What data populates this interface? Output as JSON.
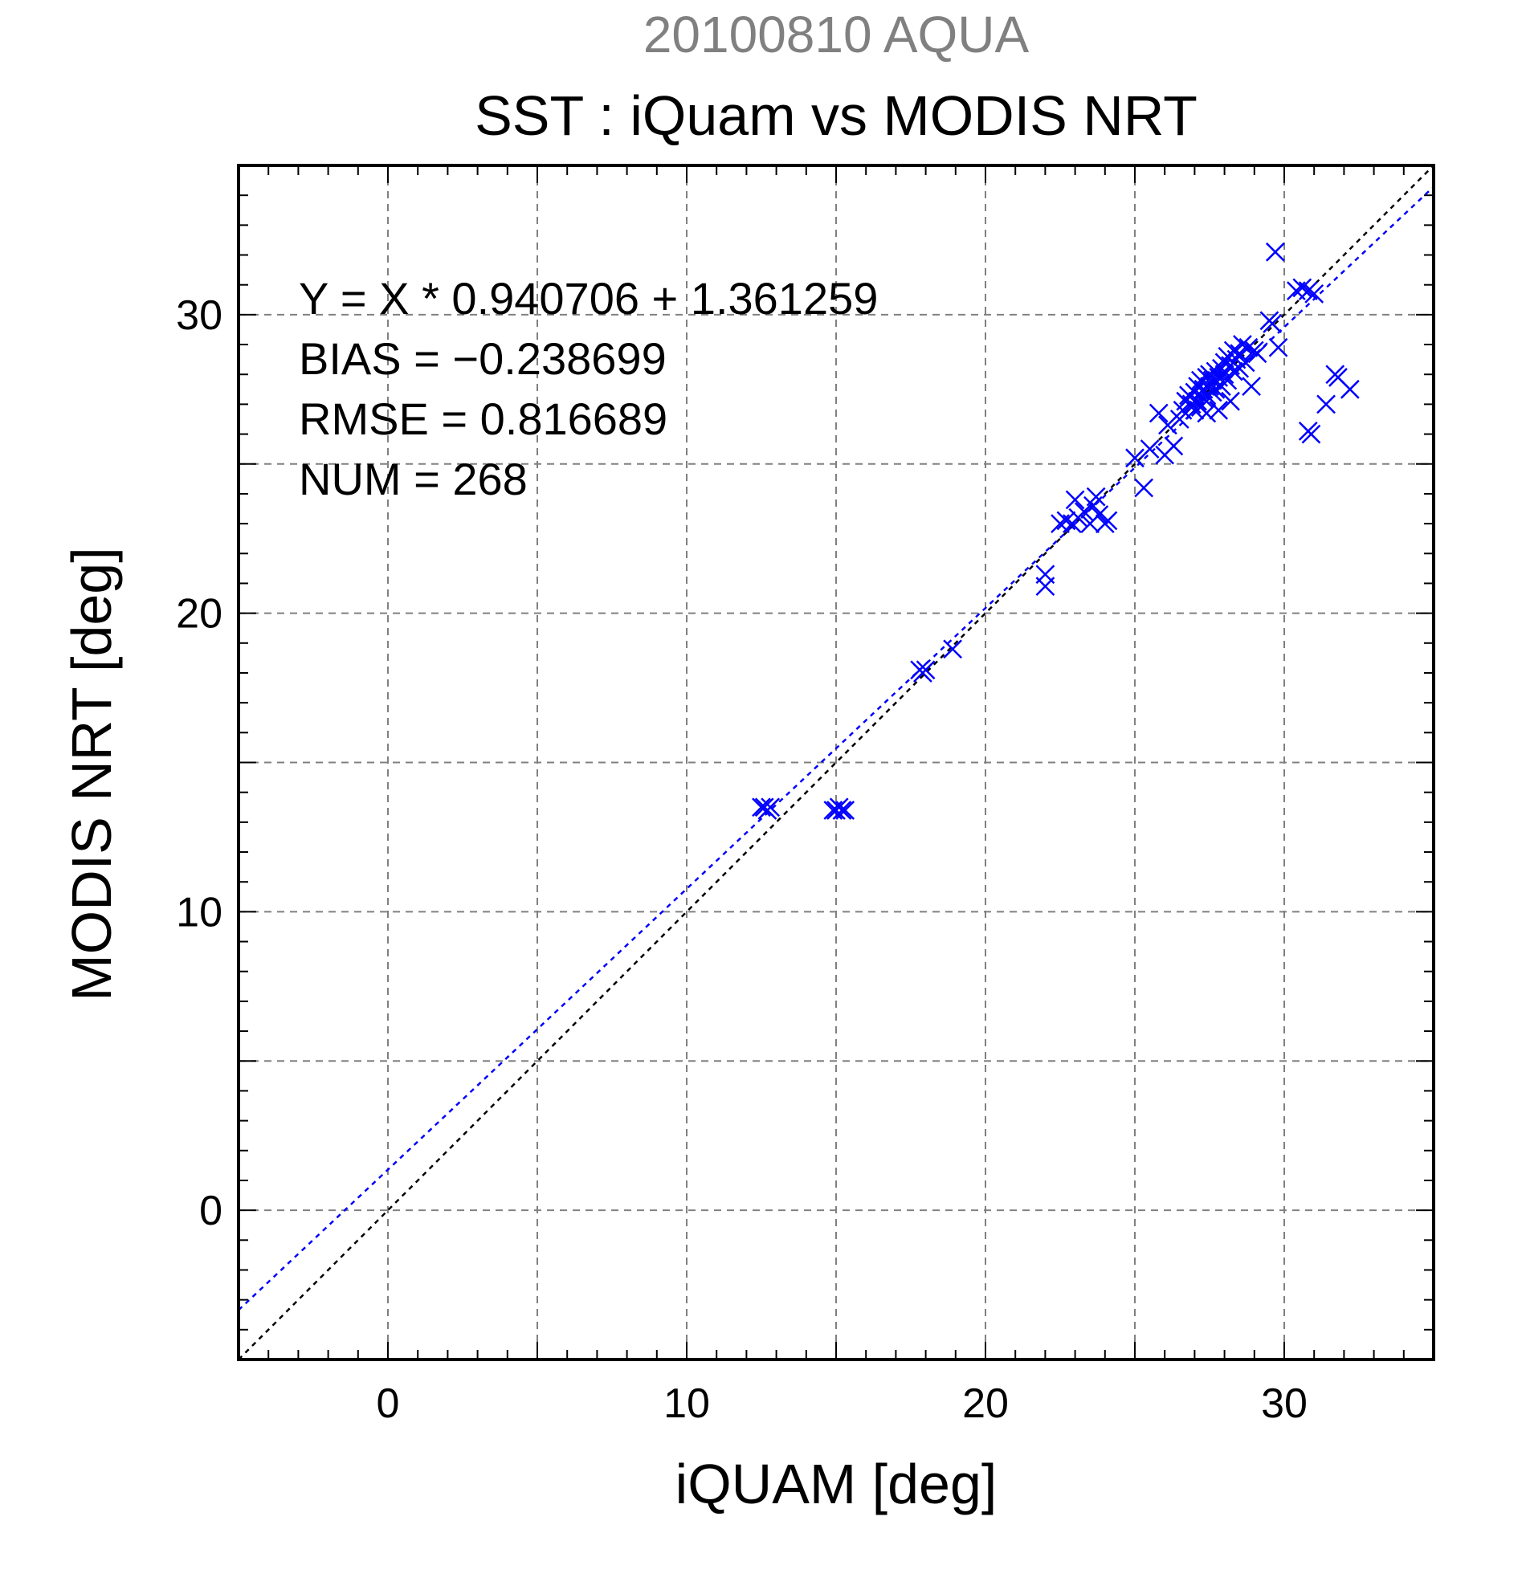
{
  "chart_data": {
    "type": "scatter",
    "supertitle": "20100810 AQUA",
    "title": "SST : iQuam vs MODIS NRT",
    "xlabel": "iQUAM [deg]",
    "ylabel": "MODIS NRT [deg]",
    "xlim": [
      -5,
      35
    ],
    "ylim": [
      -5,
      35
    ],
    "xticks": [
      0,
      10,
      20,
      30
    ],
    "yticks": [
      0,
      10,
      20,
      30
    ],
    "grid": true,
    "annotations": [
      "Y = X * 0.940706 + 1.361259",
      "BIAS = −0.238699",
      "RMSE = 0.816689",
      "NUM = 268"
    ],
    "regression": {
      "slope": 0.940706,
      "intercept": 1.361259
    },
    "identity_line": true,
    "colors": {
      "points": "#0000ff",
      "fit_line": "#0000ff",
      "identity_line": "#000000",
      "supertitle": "#808080",
      "grid": "#808080"
    },
    "series": [
      {
        "marker": "x",
        "points": [
          [
            12.6,
            13.5
          ],
          [
            12.7,
            13.4
          ],
          [
            12.8,
            13.5
          ],
          [
            12.5,
            13.5
          ],
          [
            15.0,
            13.4
          ],
          [
            15.1,
            13.5
          ],
          [
            15.2,
            13.4
          ],
          [
            14.9,
            13.4
          ],
          [
            15.3,
            13.4
          ],
          [
            17.8,
            18.1
          ],
          [
            17.9,
            18.0
          ],
          [
            18.0,
            18.1
          ],
          [
            18.9,
            18.8
          ],
          [
            22.0,
            21.3
          ],
          [
            22.0,
            20.9
          ],
          [
            22.5,
            23.0
          ],
          [
            22.7,
            23.1
          ],
          [
            22.9,
            23.0
          ],
          [
            23.0,
            23.8
          ],
          [
            23.1,
            23.2
          ],
          [
            23.3,
            23.4
          ],
          [
            23.5,
            23.0
          ],
          [
            23.6,
            23.6
          ],
          [
            23.7,
            23.9
          ],
          [
            23.8,
            23.3
          ],
          [
            24.0,
            23.0
          ],
          [
            24.1,
            23.1
          ],
          [
            25.0,
            25.2
          ],
          [
            25.3,
            24.2
          ],
          [
            25.5,
            25.5
          ],
          [
            25.8,
            26.7
          ],
          [
            26.0,
            25.3
          ],
          [
            26.1,
            26.3
          ],
          [
            26.3,
            25.6
          ],
          [
            26.5,
            26.5
          ],
          [
            26.6,
            26.8
          ],
          [
            26.7,
            27.1
          ],
          [
            26.8,
            27.3
          ],
          [
            26.9,
            27.0
          ],
          [
            27.0,
            27.4
          ],
          [
            27.0,
            26.8
          ],
          [
            27.1,
            27.6
          ],
          [
            27.1,
            27.1
          ],
          [
            27.2,
            27.8
          ],
          [
            27.2,
            26.9
          ],
          [
            27.3,
            27.5
          ],
          [
            27.3,
            27.2
          ],
          [
            27.4,
            27.9
          ],
          [
            27.4,
            27.3
          ],
          [
            27.4,
            26.7
          ],
          [
            27.5,
            27.6
          ],
          [
            27.5,
            28.0
          ],
          [
            27.6,
            27.4
          ],
          [
            27.6,
            27.8
          ],
          [
            27.7,
            28.1
          ],
          [
            27.7,
            27.5
          ],
          [
            27.8,
            27.9
          ],
          [
            27.8,
            26.8
          ],
          [
            27.9,
            28.2
          ],
          [
            27.9,
            27.6
          ],
          [
            28.0,
            28.4
          ],
          [
            28.0,
            28.0
          ],
          [
            28.1,
            27.8
          ],
          [
            28.1,
            28.6
          ],
          [
            28.2,
            28.3
          ],
          [
            28.2,
            27.1
          ],
          [
            28.3,
            28.8
          ],
          [
            28.3,
            28.1
          ],
          [
            28.4,
            28.5
          ],
          [
            28.5,
            28.7
          ],
          [
            28.5,
            28.2
          ],
          [
            28.6,
            29.0
          ],
          [
            28.7,
            28.4
          ],
          [
            28.8,
            28.9
          ],
          [
            28.9,
            27.6
          ],
          [
            29.0,
            28.8
          ],
          [
            29.1,
            28.7
          ],
          [
            29.5,
            29.8
          ],
          [
            29.6,
            29.7
          ],
          [
            29.8,
            28.9
          ],
          [
            29.7,
            32.1
          ],
          [
            30.4,
            30.8
          ],
          [
            30.6,
            30.9
          ],
          [
            30.8,
            30.8
          ],
          [
            31.0,
            30.7
          ],
          [
            30.8,
            26.1
          ],
          [
            30.9,
            26.0
          ],
          [
            31.4,
            27.0
          ],
          [
            31.7,
            28.0
          ],
          [
            31.8,
            27.9
          ],
          [
            32.2,
            27.5
          ]
        ]
      }
    ]
  }
}
